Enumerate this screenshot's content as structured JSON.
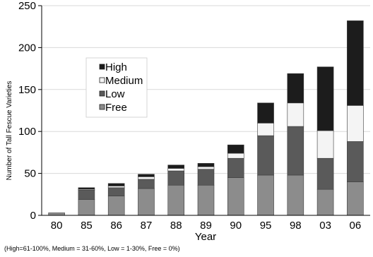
{
  "chart_data": {
    "type": "bar",
    "stacked": true,
    "categories": [
      "80",
      "85",
      "86",
      "87",
      "88",
      "89",
      "90",
      "95",
      "98",
      "03",
      "06"
    ],
    "series": [
      {
        "name": "Free",
        "color": "#8c8c8c",
        "values": [
          3,
          19,
          23,
          32,
          36,
          36,
          45,
          48,
          48,
          31,
          40
        ]
      },
      {
        "name": "Low",
        "color": "#5a5a5a",
        "values": [
          0,
          11,
          10,
          11,
          17,
          19,
          23,
          47,
          58,
          37,
          48
        ]
      },
      {
        "name": "Medium",
        "color": "#f4f4f4",
        "values": [
          0,
          1,
          2,
          3,
          3,
          3,
          6,
          15,
          28,
          33,
          43
        ]
      },
      {
        "name": "High",
        "color": "#1c1c1c",
        "values": [
          0,
          2,
          3,
          3,
          4,
          4,
          10,
          24,
          35,
          76,
          101
        ]
      }
    ],
    "legend_order": [
      "High",
      "Medium",
      "Low",
      "Free"
    ],
    "legend_position": "upper-left",
    "xlabel": "Year",
    "ylabel": "Number of Tall Fescue Varieties",
    "ylim": [
      0,
      250
    ],
    "yticks": [
      "0",
      "50",
      "100",
      "150",
      "200",
      "250"
    ],
    "grid": "horizontal",
    "footnote": "(High=61-100%, Medium = 31-60%, Low = 1-30%, Free = 0%)"
  }
}
